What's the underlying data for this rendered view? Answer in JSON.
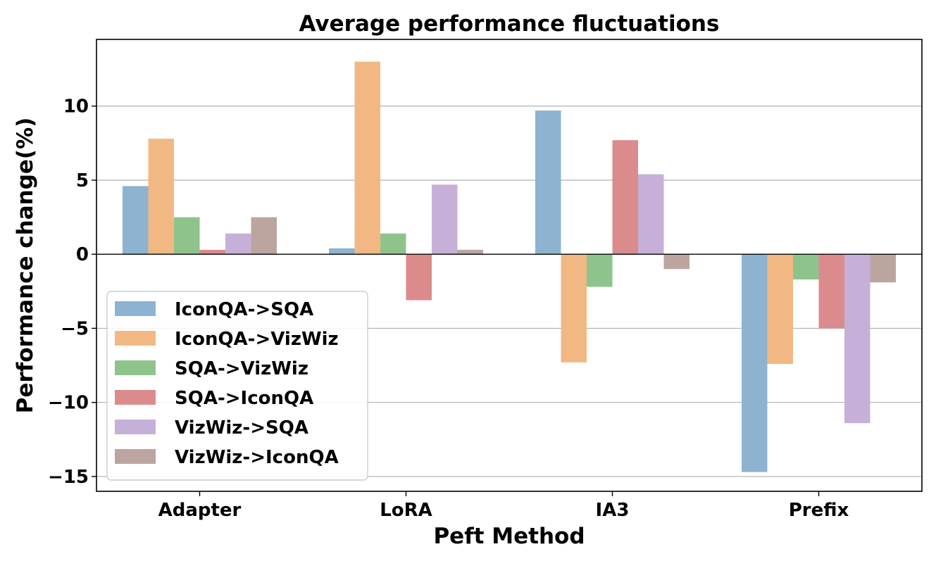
{
  "chart_data": {
    "type": "bar",
    "title": "Average performance fluctuations",
    "xlabel": "Peft Method",
    "ylabel": "Performance change(%)",
    "categories": [
      "Adapter",
      "LoRA",
      "IA3",
      "Prefix"
    ],
    "ylim": [
      -16,
      14.5
    ],
    "yticks": [
      10,
      5,
      0,
      -5,
      -10,
      -15
    ],
    "ytick_labels": [
      "10",
      "5",
      "0",
      "−5",
      "−10",
      "−15"
    ],
    "grid": "y",
    "legend_position": "lower-left",
    "series": [
      {
        "name": "IconQA->SQA",
        "color": "#8db3d0",
        "values": [
          4.6,
          0.4,
          9.7,
          -14.7
        ]
      },
      {
        "name": "IconQA->VizWiz",
        "color": "#f2b883",
        "values": [
          7.8,
          13.0,
          -7.3,
          -7.4
        ]
      },
      {
        "name": "SQA->VizWiz",
        "color": "#8ec48c",
        "values": [
          2.5,
          1.4,
          -2.2,
          -1.7
        ]
      },
      {
        "name": "SQA->IconQA",
        "color": "#dc8b8c",
        "values": [
          0.3,
          -3.1,
          7.7,
          -5.0
        ]
      },
      {
        "name": "VizWiz->SQA",
        "color": "#c6b0d8",
        "values": [
          1.4,
          4.7,
          5.4,
          -11.4
        ]
      },
      {
        "name": "VizWiz->IconQA",
        "color": "#bda59f",
        "values": [
          2.5,
          0.3,
          -1.0,
          -1.9
        ]
      }
    ]
  }
}
